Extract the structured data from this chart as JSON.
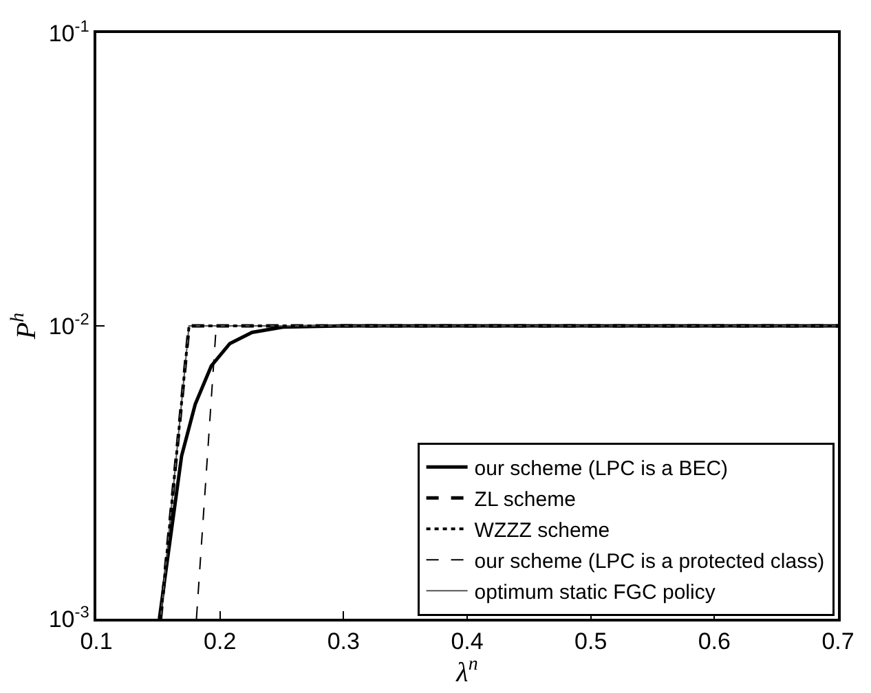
{
  "chart_data": {
    "type": "line",
    "xlabel": "λ$^{n}$",
    "ylabel": "P$^{h}$",
    "log": "y",
    "xlim": [
      0.1,
      0.7
    ],
    "xticks": [
      0.1,
      0.2,
      0.3,
      0.4,
      0.5,
      0.6,
      0.7
    ],
    "ylim": [
      0.001,
      0.1
    ],
    "yticks": [
      {
        "value": 0.001,
        "label": "10$^{-3}$"
      },
      {
        "value": 0.01,
        "label": "10$^{-2}$"
      },
      {
        "value": 0.1,
        "label": "10$^{-1}$"
      }
    ],
    "legend": "bottom right",
    "marker": "none",
    "series": [
      {
        "name": "our scheme (LPC is a BEC)",
        "color": "#000000",
        "line_style": "solid",
        "x": [
          0.151,
          0.169,
          0.18,
          0.193,
          0.208,
          0.226,
          0.251,
          0.3,
          0.7
        ],
        "values": [
          0.001,
          0.0036,
          0.0054,
          0.0073,
          0.0087,
          0.0095,
          0.0099,
          0.01,
          0.01
        ]
      },
      {
        "name": "ZL scheme",
        "color": "#000000",
        "line_style": "dashed",
        "x": [
          0.152,
          0.175,
          0.7
        ],
        "values": [
          0.001,
          0.01,
          0.01
        ]
      },
      {
        "name": "WZZZ scheme",
        "color": "#000000",
        "line_style": "dotted",
        "x": [
          0.152,
          0.175,
          0.7
        ],
        "values": [
          0.001,
          0.01,
          0.01
        ]
      },
      {
        "name": "our scheme (LPC is a protected class)",
        "color": "#000000",
        "line_style": "dashed",
        "x": [
          0.181,
          0.197,
          0.7
        ],
        "values": [
          0.001,
          0.01,
          0.01
        ]
      },
      {
        "name": "optimum static FGC policy",
        "color": "#555555",
        "line_style": "solid",
        "x": [
          0.152,
          0.175,
          0.7
        ],
        "values": [
          0.001,
          0.01,
          0.01
        ]
      }
    ]
  }
}
